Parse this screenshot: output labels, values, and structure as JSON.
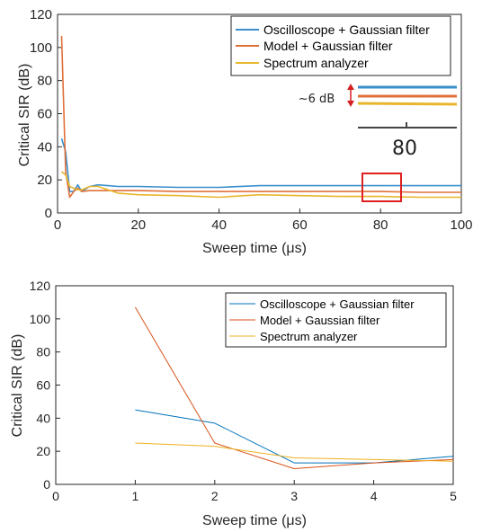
{
  "chart_data": [
    {
      "type": "line",
      "title": "",
      "xlabel": "Sweep time (μs)",
      "ylabel": "Critical SIR (dB)",
      "xlim": [
        0,
        100
      ],
      "ylim": [
        0,
        120
      ],
      "xticks": [
        0,
        20,
        40,
        60,
        80,
        100
      ],
      "yticks": [
        0,
        20,
        40,
        60,
        80,
        100,
        120
      ],
      "legend_position": "top-right",
      "series": [
        {
          "name": "Oscilloscope + Gaussian filter",
          "color": "#3a8fcc",
          "x": [
            1,
            2,
            3,
            4,
            5,
            6,
            8,
            10,
            15,
            20,
            30,
            40,
            50,
            60,
            70,
            80,
            90,
            100
          ],
          "y": [
            45,
            37,
            13,
            13,
            17,
            13,
            16,
            17,
            16,
            16,
            15.5,
            15.5,
            16.5,
            16.5,
            16.5,
            16.5,
            16.5,
            16.5
          ]
        },
        {
          "name": "Model + Gaussian filter",
          "color": "#e0703a",
          "x": [
            1,
            2,
            3,
            4,
            5,
            6,
            8,
            10,
            15,
            20,
            30,
            40,
            50,
            60,
            70,
            80,
            90,
            100
          ],
          "y": [
            107,
            25,
            9.5,
            13,
            15,
            13,
            13.5,
            13.5,
            13.5,
            13.5,
            13,
            13,
            13,
            13,
            13,
            13,
            12.5,
            12.5
          ]
        },
        {
          "name": "Spectrum analyzer",
          "color": "#e8b62c",
          "x": [
            1,
            2,
            3,
            4,
            5,
            6,
            8,
            10,
            15,
            20,
            30,
            40,
            50,
            60,
            70,
            80,
            90,
            100
          ],
          "y": [
            25,
            23,
            16,
            15,
            14,
            14,
            16,
            16,
            12,
            11,
            10.5,
            9.5,
            11,
            10.5,
            10,
            10,
            9.5,
            9.5
          ]
        }
      ],
      "inset": {
        "annotation": "~6 dB",
        "tick_label": "80"
      }
    },
    {
      "type": "line",
      "title": "",
      "xlabel": "Sweep time (μs)",
      "ylabel": "Critical SIR (dB)",
      "xlim": [
        0,
        5
      ],
      "ylim": [
        0,
        120
      ],
      "xticks": [
        0,
        1,
        2,
        3,
        4,
        5
      ],
      "yticks": [
        0,
        20,
        40,
        60,
        80,
        100,
        120
      ],
      "legend_position": "top-right",
      "series": [
        {
          "name": "Oscilloscope + Gaussian filter",
          "color": "#0072bd",
          "x": [
            1,
            2,
            3,
            4,
            5
          ],
          "y": [
            45,
            37,
            13,
            13,
            17
          ]
        },
        {
          "name": "Model + Gaussian filter",
          "color": "#d95319",
          "x": [
            1,
            2,
            3,
            4,
            5
          ],
          "y": [
            107,
            25,
            9.5,
            13,
            15
          ]
        },
        {
          "name": "Spectrum analyzer",
          "color": "#edb120",
          "x": [
            1,
            2,
            3,
            4,
            5
          ],
          "y": [
            25,
            23,
            16,
            15,
            14
          ]
        }
      ]
    }
  ]
}
